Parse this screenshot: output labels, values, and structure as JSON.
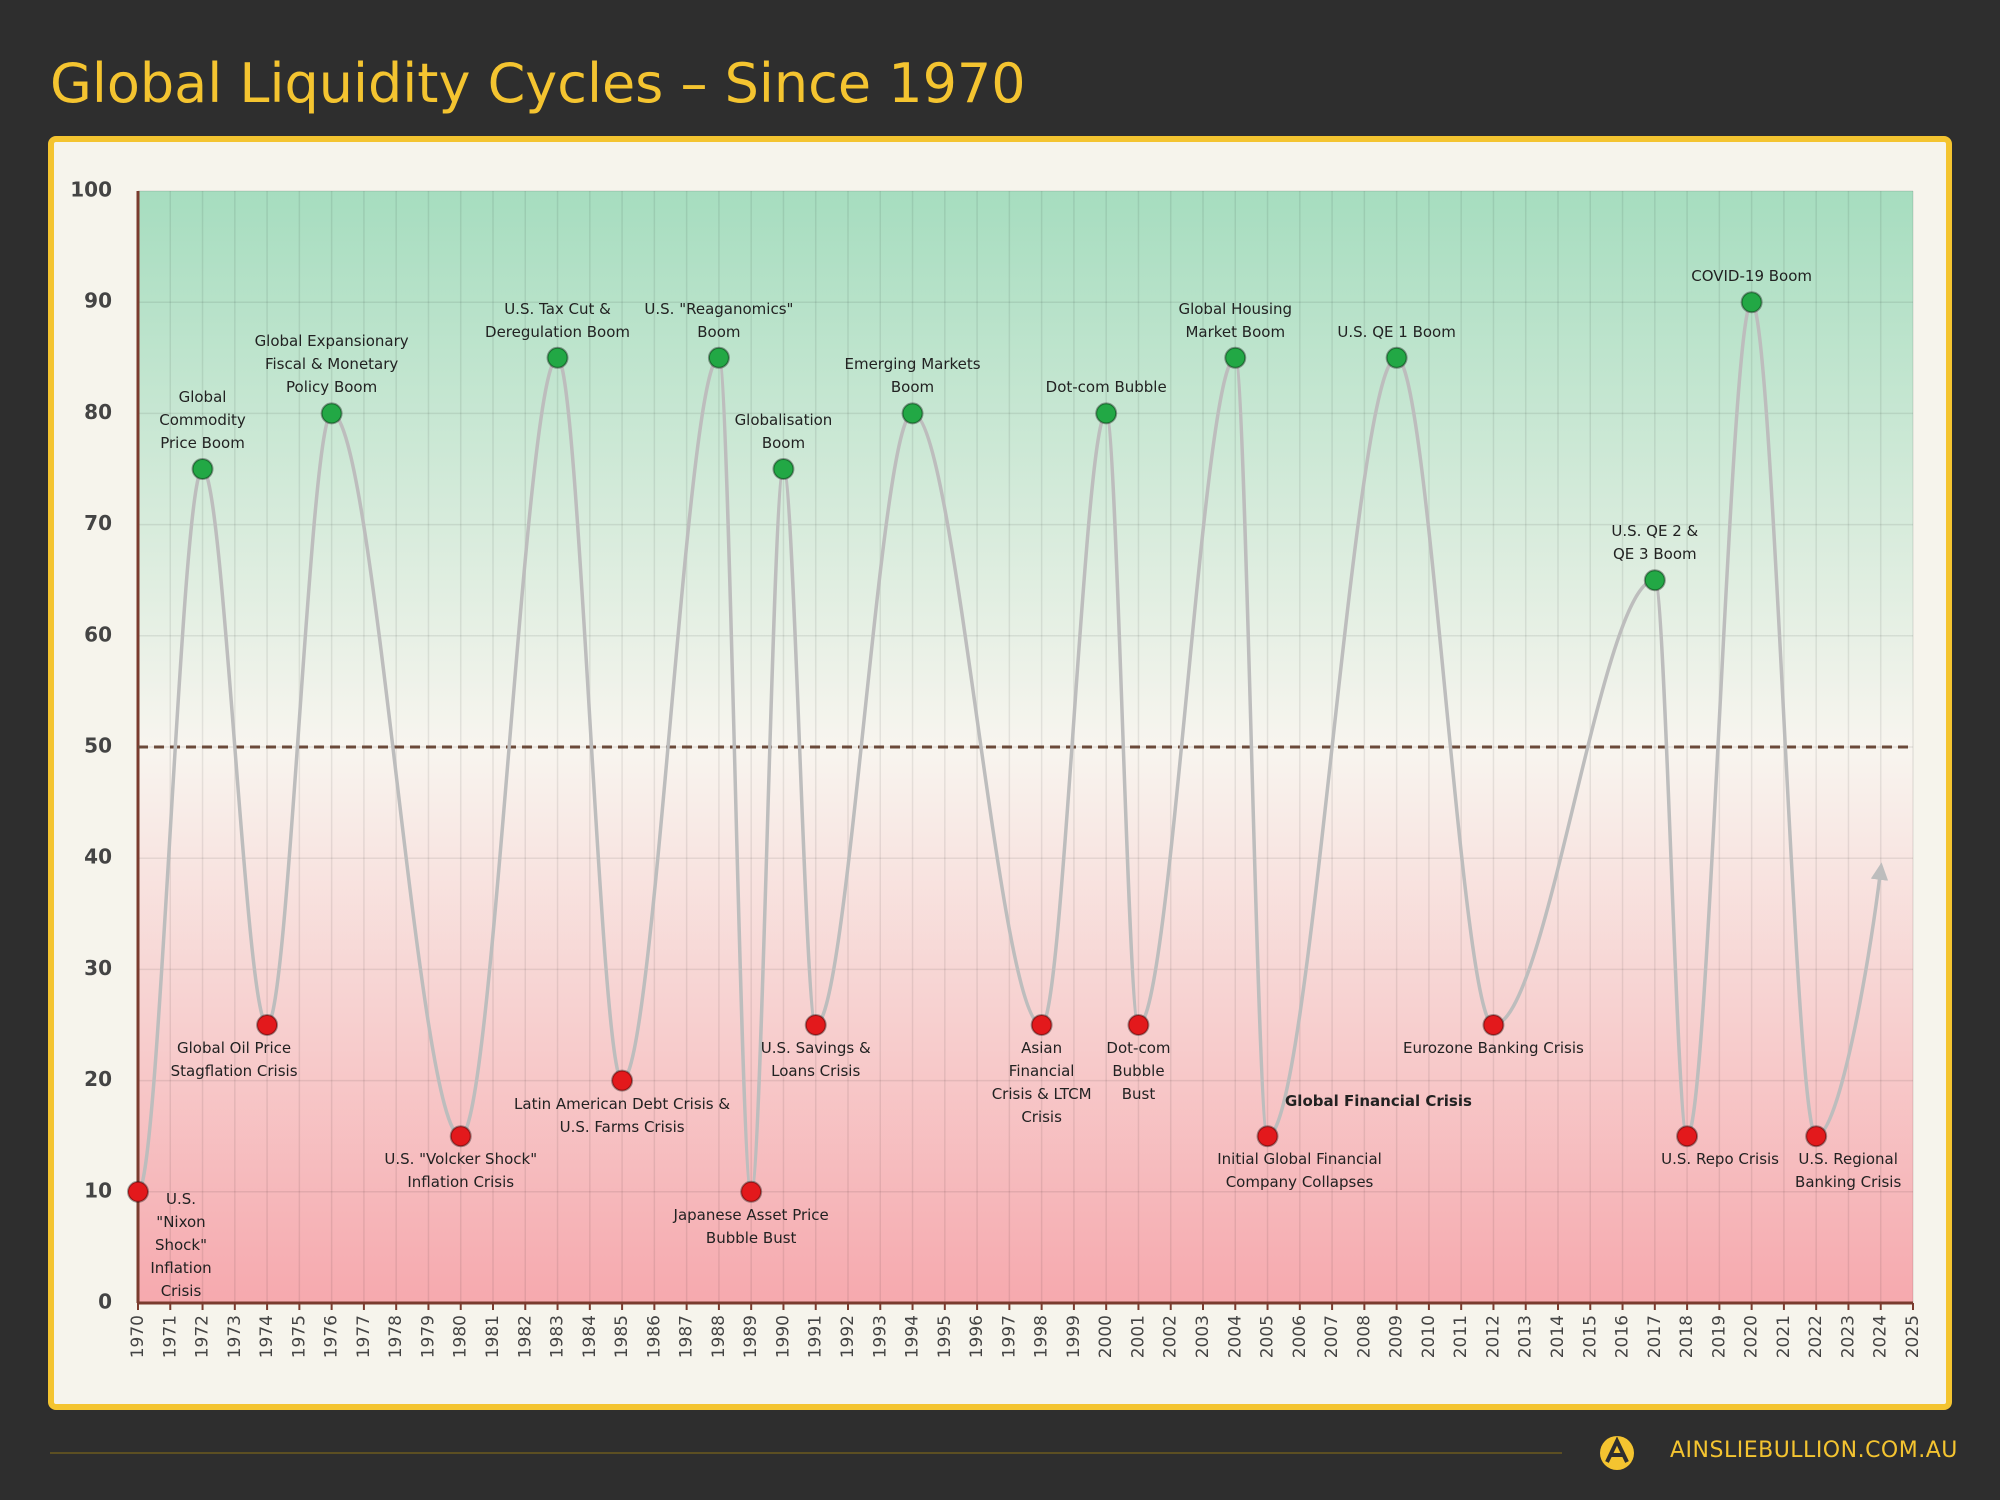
{
  "chart_data": {
    "type": "line",
    "title": "Global Liquidity Cycles – Since 1970",
    "x": [
      1970,
      1972,
      1974,
      1976,
      1980,
      1983,
      1985,
      1988,
      1989,
      1990,
      1991,
      1994,
      1998,
      2000,
      2001,
      2004,
      2005,
      2009,
      2012,
      2017,
      2018,
      2020,
      2022,
      2024
    ],
    "values": [
      10,
      75,
      25,
      80,
      15,
      85,
      20,
      85,
      10,
      75,
      25,
      80,
      25,
      80,
      25,
      85,
      15,
      85,
      25,
      65,
      15,
      90,
      15,
      39
    ],
    "annotations": [
      "U.S. \"Nixon Shock\" Inflation Crisis",
      "Global Commodity Price Boom",
      "Global Oil Price Stagflation Crisis",
      "Global Expansionary Fiscal & Monetary Policy Boom",
      "U.S. \"Volcker Shock\" Inflation Crisis",
      "U.S. Tax Cut & Deregulation Boom",
      "Latin American Debt Crisis & U.S. Farms Crisis",
      "U.S. \"Reaganomics\" Boom",
      "Japanese Asset Price Bubble Bust",
      "Globalisation Boom",
      "U.S. Savings & Loans Crisis",
      "Emerging Markets Boom",
      "Asian Financial Crisis & LTCM Crisis",
      "Dot-com Bubble",
      "Dot-com Bubble Bust",
      "Global Housing Market Boom",
      "Initial Global Financial Company Collapses",
      "U.S. QE 1 Boom",
      "Eurozone Banking Crisis",
      "U.S. QE 2 & QE 3 Boom",
      "U.S. Repo Crisis",
      "COVID-19 Boom",
      "U.S. Regional Banking Crisis",
      null
    ],
    "note": "Global Financial Crisis",
    "line_color": "#bdbdbd",
    "peak_color": "#22a845",
    "trough_color": "#e3191c",
    "reference_line": 50,
    "reference_color": "#6b4a3a",
    "xlim": [
      1970,
      2025
    ],
    "xticks": [
      1970,
      1971,
      1972,
      1973,
      1974,
      1975,
      1976,
      1977,
      1978,
      1979,
      1980,
      1981,
      1982,
      1983,
      1984,
      1985,
      1986,
      1987,
      1988,
      1989,
      1990,
      1991,
      1992,
      1993,
      1994,
      1995,
      1996,
      1997,
      1998,
      1999,
      2000,
      2001,
      2002,
      2003,
      2004,
      2005,
      2006,
      2007,
      2008,
      2009,
      2010,
      2011,
      2012,
      2013,
      2014,
      2015,
      2016,
      2017,
      2018,
      2019,
      2020,
      2021,
      2022,
      2023,
      2024,
      2025
    ],
    "ylim": [
      0,
      100
    ],
    "yticks": [
      0,
      10,
      20,
      30,
      40,
      50,
      60,
      70,
      80,
      90,
      100
    ],
    "grid": true
  },
  "footer": {
    "brand": "AINSLIEBULLION.COM.AU"
  }
}
